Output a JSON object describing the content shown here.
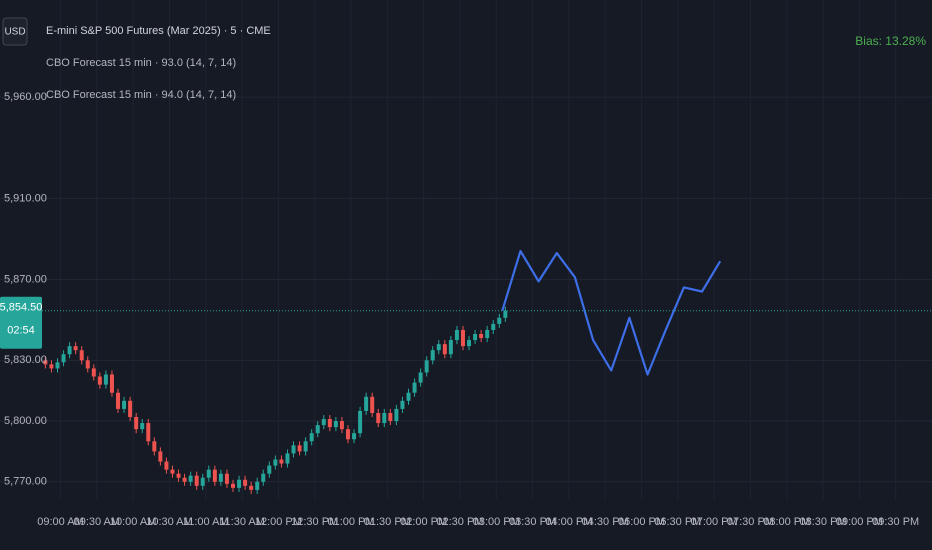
{
  "chart_data": {
    "type": "candlestick",
    "title": "E-mini S&P 500 Futures (Mar 2025) · 5 · CME",
    "indicators": [
      "CBO Forecast 15 min · 93.0 (14, 7, 14)",
      "CBO Forecast 15 min · 94.0 (14, 7, 14)"
    ],
    "currency": "USD",
    "annotation": "Bias: 13.28%",
    "annotation_color": "#4caf50",
    "countdown": "02:54",
    "last_price": {
      "value": 5854.5,
      "label": "5,854.50"
    },
    "up_color": "#26a69a",
    "down_color": "#ef5350",
    "grid": true,
    "session_gap": [
      "17:00",
      "18:00"
    ],
    "xlim": [
      "08:10",
      "22:00"
    ],
    "ylim": [
      5761,
      6008
    ],
    "yticks": [
      {
        "value": 5960,
        "label": "5,960.00"
      },
      {
        "value": 5910,
        "label": "5,910.00"
      },
      {
        "value": 5870,
        "label": "5,870.00"
      },
      {
        "value": 5830,
        "label": "5,830.00"
      },
      {
        "value": 5800,
        "label": "5,800.00"
      },
      {
        "value": 5770,
        "label": "5,770.00"
      }
    ],
    "xticks": [
      {
        "value": "09:00",
        "label": "09:00 AM"
      },
      {
        "value": "09:30",
        "label": "09:30 AM"
      },
      {
        "value": "10:00",
        "label": "10:00 AM"
      },
      {
        "value": "10:30",
        "label": "10:30 AM"
      },
      {
        "value": "11:00",
        "label": "11:00 AM"
      },
      {
        "value": "11:30",
        "label": "11:30 AM"
      },
      {
        "value": "12:00",
        "label": "12:00 PM"
      },
      {
        "value": "12:30",
        "label": "12:30 PM"
      },
      {
        "value": "13:00",
        "label": "01:00 PM"
      },
      {
        "value": "13:30",
        "label": "01:30 PM"
      },
      {
        "value": "14:00",
        "label": "02:00 PM"
      },
      {
        "value": "14:30",
        "label": "02:30 PM"
      },
      {
        "value": "15:00",
        "label": "03:00 PM"
      },
      {
        "value": "15:30",
        "label": "03:30 PM"
      },
      {
        "value": "16:00",
        "label": "04:00 PM"
      },
      {
        "value": "16:30",
        "label": "04:30 PM"
      },
      {
        "value": "18:00",
        "label": "06:00 PM"
      },
      {
        "value": "18:30",
        "label": "06:30 PM"
      },
      {
        "value": "19:00",
        "label": "07:00 PM"
      },
      {
        "value": "19:30",
        "label": "07:30 PM"
      },
      {
        "value": "20:00",
        "label": "08:00 PM"
      },
      {
        "value": "20:30",
        "label": "08:30 PM"
      },
      {
        "value": "21:00",
        "label": "09:00 PM"
      },
      {
        "value": "21:30",
        "label": "09:30 PM"
      }
    ],
    "x": [
      "08:45",
      "08:50",
      "08:55",
      "09:00",
      "09:05",
      "09:10",
      "09:15",
      "09:20",
      "09:25",
      "09:30",
      "09:35",
      "09:40",
      "09:45",
      "09:50",
      "09:55",
      "10:00",
      "10:05",
      "10:10",
      "10:15",
      "10:20",
      "10:25",
      "10:30",
      "10:35",
      "10:40",
      "10:45",
      "10:50",
      "10:55",
      "11:00",
      "11:05",
      "11:10",
      "11:15",
      "11:20",
      "11:25",
      "11:30",
      "11:35",
      "11:40",
      "11:45",
      "11:50",
      "11:55",
      "12:00",
      "12:05",
      "12:10",
      "12:15",
      "12:20",
      "12:25",
      "12:30",
      "12:35",
      "12:40",
      "12:45",
      "12:50",
      "12:55",
      "13:00",
      "13:05",
      "13:10",
      "13:15",
      "13:20",
      "13:25",
      "13:30",
      "13:35",
      "13:40",
      "13:45",
      "13:50",
      "13:55",
      "14:00",
      "14:05",
      "14:10",
      "14:15",
      "14:20",
      "14:25",
      "14:30",
      "14:35",
      "14:40",
      "14:45",
      "14:50",
      "14:55",
      "15:00",
      "15:05"
    ],
    "open": [
      5830,
      5828,
      5826,
      5829,
      5833,
      5837,
      5835,
      5830,
      5826,
      5822,
      5818,
      5823,
      5814,
      5806,
      5810,
      5802,
      5796,
      5799,
      5790,
      5785,
      5780,
      5776,
      5774,
      5772,
      5770,
      5773,
      5768,
      5772,
      5776,
      5770,
      5774,
      5769,
      5767,
      5771,
      5768,
      5766,
      5770,
      5774,
      5778,
      5781,
      5779,
      5784,
      5788,
      5785,
      5790,
      5794,
      5798,
      5801,
      5797,
      5800,
      5796,
      5791,
      5794,
      5805,
      5812,
      5804,
      5799,
      5804,
      5800,
      5806,
      5810,
      5814,
      5819,
      5824,
      5830,
      5835,
      5838,
      5833,
      5840,
      5845,
      5837,
      5840,
      5843,
      5841,
      5845,
      5848,
      5851
    ],
    "high": [
      5832,
      5830,
      5831,
      5835,
      5839,
      5839,
      5837,
      5832,
      5828,
      5824,
      5825,
      5825,
      5816,
      5812,
      5812,
      5804,
      5801,
      5801,
      5792,
      5787,
      5782,
      5778,
      5776,
      5774,
      5775,
      5775,
      5774,
      5778,
      5778,
      5776,
      5776,
      5771,
      5773,
      5773,
      5770,
      5772,
      5776,
      5780,
      5783,
      5783,
      5786,
      5790,
      5790,
      5792,
      5796,
      5800,
      5803,
      5803,
      5802,
      5802,
      5798,
      5796,
      5807,
      5814,
      5814,
      5806,
      5806,
      5806,
      5808,
      5812,
      5816,
      5821,
      5826,
      5832,
      5837,
      5840,
      5840,
      5842,
      5847,
      5847,
      5842,
      5845,
      5845,
      5847,
      5850,
      5853,
      5856.5
    ],
    "low": [
      5826,
      5824,
      5824,
      5827,
      5831,
      5833,
      5828,
      5824,
      5820,
      5816,
      5816,
      5812,
      5804,
      5804,
      5800,
      5794,
      5794,
      5788,
      5783,
      5778,
      5774,
      5772,
      5770,
      5768,
      5768,
      5766,
      5766,
      5770,
      5768,
      5768,
      5767,
      5765,
      5765,
      5766,
      5764,
      5764,
      5768,
      5772,
      5776,
      5777,
      5777,
      5782,
      5783,
      5783,
      5788,
      5792,
      5796,
      5795,
      5795,
      5794,
      5789,
      5789,
      5792,
      5803,
      5802,
      5797,
      5797,
      5798,
      5798,
      5804,
      5808,
      5812,
      5817,
      5822,
      5828,
      5833,
      5831,
      5831,
      5838,
      5835,
      5835,
      5838,
      5839,
      5839,
      5843,
      5846,
      5849
    ],
    "close": [
      5828,
      5826,
      5829,
      5833,
      5837,
      5835,
      5830,
      5826,
      5822,
      5818,
      5823,
      5814,
      5806,
      5810,
      5802,
      5796,
      5799,
      5790,
      5785,
      5780,
      5776,
      5774,
      5772,
      5770,
      5773,
      5768,
      5772,
      5776,
      5770,
      5774,
      5769,
      5767,
      5771,
      5768,
      5766,
      5770,
      5774,
      5778,
      5781,
      5779,
      5784,
      5788,
      5785,
      5790,
      5794,
      5798,
      5801,
      5797,
      5800,
      5796,
      5791,
      5794,
      5805,
      5812,
      5804,
      5799,
      5804,
      5800,
      5806,
      5810,
      5814,
      5819,
      5824,
      5830,
      5835,
      5838,
      5833,
      5840,
      5845,
      5837,
      5840,
      5843,
      5841,
      5845,
      5848,
      5851,
      5854.5
    ],
    "forecast": {
      "color": "#3d6ee8",
      "x": [
        "15:05",
        "15:20",
        "15:35",
        "15:50",
        "16:05",
        "16:20",
        "16:35",
        "16:50",
        "18:05",
        "18:20",
        "18:35",
        "18:50",
        "19:05"
      ],
      "values": [
        5854.5,
        5884,
        5869,
        5883,
        5871,
        5840,
        5825,
        5851,
        5823,
        5845,
        5866,
        5864,
        5879
      ]
    }
  }
}
